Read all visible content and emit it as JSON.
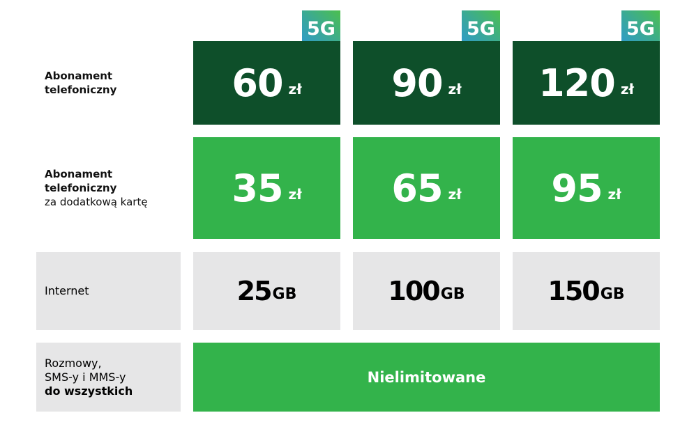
{
  "badge": "5G",
  "rows": {
    "subscription": {
      "label_lines": [
        "Abonament",
        "telefoniczny"
      ]
    },
    "extra_card": {
      "label_lines": [
        "Abonament",
        "telefoniczny",
        "za dodatkową kartę"
      ]
    },
    "internet": {
      "label": "Internet"
    },
    "calls": {
      "label_lines": [
        "Rozmowy,",
        "SMS-y i MMS-y",
        "do wszystkich"
      ]
    }
  },
  "plans": [
    {
      "price": "60",
      "price_unit": "zł",
      "extra_price": "35",
      "extra_unit": "zł",
      "data": "25",
      "data_unit": "GB"
    },
    {
      "price": "90",
      "price_unit": "zł",
      "extra_price": "65",
      "extra_unit": "zł",
      "data": "100",
      "data_unit": "GB"
    },
    {
      "price": "120",
      "price_unit": "zł",
      "extra_price": "95",
      "extra_unit": "zł",
      "data": "150",
      "data_unit": "GB"
    }
  ],
  "calls_value": "Nielimitowane",
  "colors": {
    "dark_green": "#0e4f2a",
    "green": "#33b34b",
    "gray": "#e6e6e7"
  }
}
